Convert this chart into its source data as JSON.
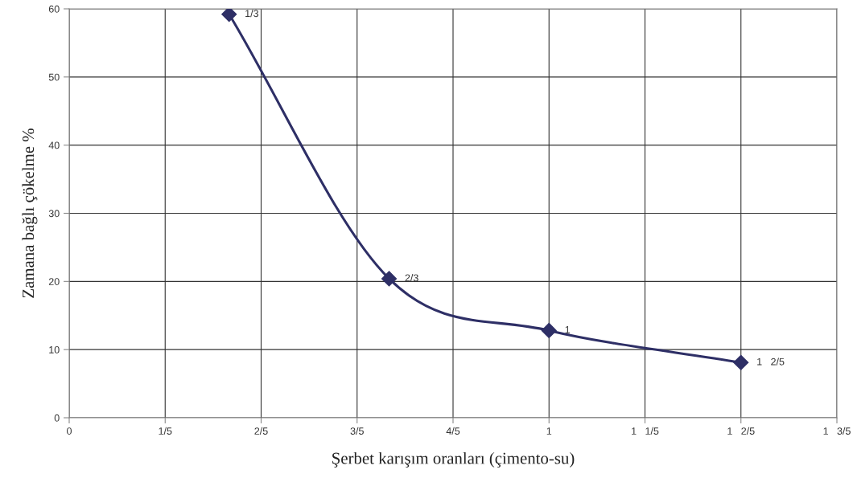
{
  "chart_data": {
    "type": "line",
    "xlabel": "Şerbet karışım oranları (çimento-su)",
    "ylabel": "Zamana bağlı çökelme %",
    "series": [
      {
        "color": "#2e2f66",
        "x": [
          0.3333,
          0.6667,
          1.0,
          1.4
        ],
        "values": [
          59.2,
          20.4,
          12.8,
          8.1
        ]
      }
    ],
    "xlim": [
      0,
      1.6
    ],
    "xticks": [
      0,
      {
        "value": 0.2,
        "label": "1/5"
      },
      {
        "value": 0.4,
        "label": "2/5"
      },
      {
        "value": 0.6,
        "label": "3/5"
      },
      {
        "value": 0.8,
        "label": "4/5"
      },
      1,
      {
        "value": 1.2,
        "label": "1   1/5"
      },
      {
        "value": 1.4,
        "label": "1   2/5"
      },
      {
        "value": 1.6,
        "label": "1   3/5"
      }
    ],
    "ylim": [
      0,
      60
    ],
    "yticks": [
      0,
      10,
      20,
      30,
      40,
      50,
      60
    ],
    "grid": true,
    "marker": "diamond",
    "line_style": "solid",
    "annotations": [
      {
        "text": "1/3",
        "x": 0.3333,
        "y": 59.2
      },
      {
        "text": "2/3",
        "x": 0.6667,
        "y": 20.4
      },
      {
        "text": "1",
        "x": 1.0,
        "y": 12.8
      },
      {
        "text": "1   2/5",
        "x": 1.4,
        "y": 8.1
      }
    ]
  }
}
